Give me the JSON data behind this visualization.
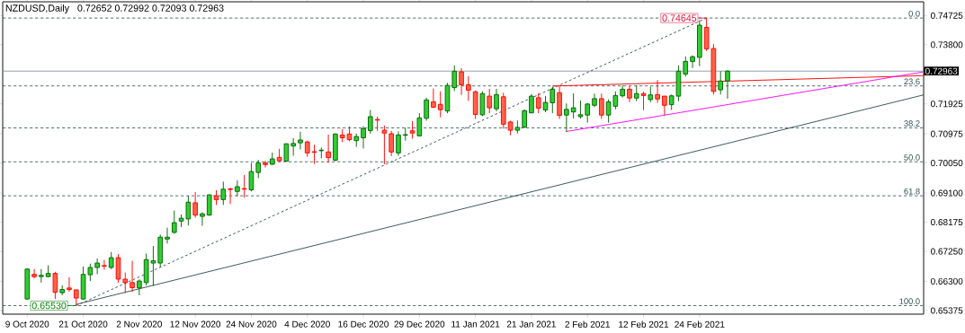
{
  "chart_data": {
    "type": "candlestick",
    "title": "NZDUSD,Daily",
    "subtitle": "0.72652 0.72992 0.72093 0.72963",
    "categories": [
      "9 Oct 2020",
      null,
      null,
      null,
      null,
      null,
      null,
      null,
      "21 Oct 2020",
      null,
      null,
      null,
      null,
      null,
      null,
      null,
      "2 Nov 2020",
      null,
      null,
      null,
      null,
      null,
      null,
      null,
      "12 Nov 2020",
      null,
      null,
      null,
      null,
      null,
      null,
      null,
      "24 Nov 2020",
      null,
      null,
      null,
      null,
      null,
      null,
      null,
      "4 Dec 2020",
      null,
      null,
      null,
      null,
      null,
      null,
      null,
      "16 Dec 2020",
      null,
      null,
      null,
      null,
      null,
      null,
      null,
      "29 Dec 2020",
      null,
      null,
      null,
      null,
      null,
      null,
      null,
      "11 Jan 2021",
      null,
      null,
      null,
      null,
      null,
      null,
      null,
      "21 Jan 2021",
      null,
      null,
      null,
      null,
      null,
      null,
      null,
      "2 Feb 2021",
      null,
      null,
      null,
      null,
      null,
      null,
      null,
      "12 Feb 2021",
      null,
      null,
      null,
      null,
      null,
      null,
      null,
      "24 Feb 2021",
      null,
      null,
      null,
      null,
      null,
      null,
      null,
      null,
      null,
      null,
      null,
      null,
      null,
      null,
      null,
      null,
      null,
      null,
      null,
      null,
      null,
      null,
      null,
      null,
      null,
      null,
      null,
      null,
      null,
      null,
      null,
      null
    ],
    "ohlc": [
      [
        0.6574,
        0.6671,
        0.6572,
        0.6669
      ],
      [
        0.6652,
        0.6669,
        0.6639,
        0.6645
      ],
      [
        0.6645,
        0.6669,
        0.6626,
        0.6649
      ],
      [
        0.6645,
        0.6681,
        0.6643,
        0.6655
      ],
      [
        0.6655,
        0.666,
        0.6574,
        0.6595
      ],
      [
        0.6594,
        0.6617,
        0.6586,
        0.6604
      ],
      [
        0.6609,
        0.6643,
        0.6597,
        0.6604
      ],
      [
        0.6603,
        0.6603,
        0.6553,
        0.6577
      ],
      [
        0.6574,
        0.6677,
        0.6572,
        0.6652
      ],
      [
        0.6651,
        0.6686,
        0.6631,
        0.6674
      ],
      [
        0.6674,
        0.6703,
        0.6653,
        0.6688
      ],
      [
        0.668,
        0.6698,
        0.6667,
        0.6678
      ],
      [
        0.6674,
        0.6723,
        0.6669,
        0.6705
      ],
      [
        0.6705,
        0.6716,
        0.6626,
        0.6637
      ],
      [
        0.6637,
        0.6658,
        0.6593,
        0.6626
      ],
      [
        0.6626,
        0.6695,
        0.6597,
        0.661
      ],
      [
        0.6609,
        0.6636,
        0.6586,
        0.6631
      ],
      [
        0.6626,
        0.6718,
        0.6617,
        0.6699
      ],
      [
        0.6688,
        0.6742,
        0.6615,
        0.6695
      ],
      [
        0.6688,
        0.6778,
        0.6675,
        0.677
      ],
      [
        0.6764,
        0.68,
        0.675,
        0.677
      ],
      [
        0.6785,
        0.6854,
        0.6781,
        0.6816
      ],
      [
        0.6821,
        0.6842,
        0.6802,
        0.683
      ],
      [
        0.6828,
        0.6901,
        0.6807,
        0.6881
      ],
      [
        0.6879,
        0.6913,
        0.6832,
        0.684
      ],
      [
        0.6836,
        0.6849,
        0.6806,
        0.6844
      ],
      [
        0.684,
        0.6906,
        0.6838,
        0.6904
      ],
      [
        0.6901,
        0.6919,
        0.6872,
        0.6889
      ],
      [
        0.6889,
        0.6946,
        0.6872,
        0.6922
      ],
      [
        0.6923,
        0.6927,
        0.6875,
        0.6921
      ],
      [
        0.6915,
        0.695,
        0.69,
        0.693
      ],
      [
        0.6924,
        0.6967,
        0.6895,
        0.6922
      ],
      [
        0.692,
        0.7005,
        0.6915,
        0.6978
      ],
      [
        0.6975,
        0.7015,
        0.6957,
        0.7005
      ],
      [
        0.7005,
        0.7012,
        0.6991,
        0.7
      ],
      [
        0.7001,
        0.7038,
        0.6999,
        0.7018
      ],
      [
        0.7023,
        0.705,
        0.701,
        0.7012
      ],
      [
        0.7011,
        0.7067,
        0.701,
        0.7066
      ],
      [
        0.7059,
        0.7084,
        0.7028,
        0.7067
      ],
      [
        0.7069,
        0.7104,
        0.7048,
        0.7078
      ],
      [
        0.7072,
        0.7076,
        0.7025,
        0.7037
      ],
      [
        0.7041,
        0.7063,
        0.7002,
        0.7039
      ],
      [
        0.7044,
        0.7054,
        0.702,
        0.7046
      ],
      [
        0.704,
        0.7095,
        0.7006,
        0.7022
      ],
      [
        0.7014,
        0.7099,
        0.7011,
        0.7097
      ],
      [
        0.7094,
        0.7112,
        0.7071,
        0.7085
      ],
      [
        0.7097,
        0.7121,
        0.7074,
        0.7079
      ],
      [
        0.7076,
        0.7098,
        0.7056,
        0.7089
      ],
      [
        0.7085,
        0.7122,
        0.7051,
        0.7114
      ],
      [
        0.7108,
        0.7173,
        0.7098,
        0.7152
      ],
      [
        0.7143,
        0.7152,
        0.7107,
        0.7141
      ],
      [
        0.7109,
        0.7124,
        0.7001,
        0.71
      ],
      [
        0.7098,
        0.7107,
        0.7027,
        0.704
      ],
      [
        0.7037,
        0.7105,
        0.7028,
        0.7094
      ],
      [
        0.7093,
        0.7117,
        0.7076,
        0.7095
      ],
      [
        0.7107,
        0.7138,
        0.7082,
        0.71
      ],
      [
        0.7091,
        0.7163,
        0.709,
        0.7148
      ],
      [
        0.7147,
        0.7212,
        0.7139,
        0.7205
      ],
      [
        0.7199,
        0.7241,
        0.7179,
        0.7182
      ],
      [
        0.7191,
        0.7232,
        0.715,
        0.7174
      ],
      [
        0.717,
        0.7259,
        0.7163,
        0.7251
      ],
      [
        0.7244,
        0.7314,
        0.7233,
        0.7296
      ],
      [
        0.7294,
        0.7306,
        0.7221,
        0.7253
      ],
      [
        0.7253,
        0.728,
        0.7202,
        0.7236
      ],
      [
        0.7231,
        0.7235,
        0.7145,
        0.7159
      ],
      [
        0.7158,
        0.7232,
        0.7154,
        0.7225
      ],
      [
        0.7217,
        0.724,
        0.7163,
        0.718
      ],
      [
        0.7177,
        0.724,
        0.7169,
        0.7222
      ],
      [
        0.7215,
        0.7228,
        0.7114,
        0.7128
      ],
      [
        0.7135,
        0.7139,
        0.7093,
        0.7109
      ],
      [
        0.7109,
        0.714,
        0.7099,
        0.7118
      ],
      [
        0.7119,
        0.7175,
        0.7116,
        0.7171
      ],
      [
        0.7164,
        0.7224,
        0.7163,
        0.7217
      ],
      [
        0.7212,
        0.7227,
        0.7163,
        0.7179
      ],
      [
        0.7173,
        0.7217,
        0.7166,
        0.7197
      ],
      [
        0.7196,
        0.7247,
        0.7163,
        0.7239
      ],
      [
        0.7228,
        0.7247,
        0.7145,
        0.7156
      ],
      [
        0.7157,
        0.7194,
        0.7103,
        0.7175
      ],
      [
        0.7167,
        0.7226,
        0.7146,
        0.718
      ],
      [
        0.7152,
        0.7203,
        0.7146,
        0.7158
      ],
      [
        0.7157,
        0.7195,
        0.7133,
        0.7192
      ],
      [
        0.7188,
        0.7225,
        0.7182,
        0.7209
      ],
      [
        0.7209,
        0.7225,
        0.7145,
        0.7157
      ],
      [
        0.7157,
        0.7207,
        0.7133,
        0.7199
      ],
      [
        0.7185,
        0.7232,
        0.7175,
        0.7219
      ],
      [
        0.7218,
        0.7251,
        0.7213,
        0.7239
      ],
      [
        0.7239,
        0.7249,
        0.7198,
        0.7211
      ],
      [
        0.7211,
        0.7251,
        0.7201,
        0.7225
      ],
      [
        0.7225,
        0.7231,
        0.7173,
        0.7219
      ],
      [
        0.7206,
        0.7247,
        0.7198,
        0.7221
      ],
      [
        0.7222,
        0.7268,
        0.7196,
        0.7208
      ],
      [
        0.7217,
        0.7218,
        0.7156,
        0.7188
      ],
      [
        0.719,
        0.7222,
        0.7173,
        0.7218
      ],
      [
        0.7217,
        0.7314,
        0.7201,
        0.7296
      ],
      [
        0.7287,
        0.7343,
        0.7279,
        0.7327
      ],
      [
        0.7327,
        0.7346,
        0.7306,
        0.7342
      ],
      [
        0.734,
        0.7457,
        0.7312,
        0.7442
      ],
      [
        0.7435,
        0.74645,
        0.736,
        0.7367
      ],
      [
        0.7368,
        0.7382,
        0.7222,
        0.7232
      ],
      [
        0.7237,
        0.7296,
        0.7222,
        0.7265
      ],
      [
        0.72652,
        0.72992,
        0.72093,
        0.72963
      ],
      null,
      null,
      null,
      null,
      null,
      null,
      null,
      null,
      null,
      null,
      null,
      null,
      null,
      null,
      null,
      null,
      null,
      null,
      null,
      null,
      null,
      null,
      null,
      null,
      null,
      null,
      null,
      null
    ],
    "series": [
      {
        "type": "line",
        "color": "#2f4f4f",
        "line_style": "solid",
        "values": [
          null,
          null,
          null,
          null,
          null,
          null,
          null,
          0.6557,
          null,
          null,
          null,
          null,
          null,
          null,
          null,
          null,
          null,
          null,
          null,
          null,
          null,
          null,
          null,
          null,
          null,
          null,
          null,
          null,
          null,
          null,
          null,
          null,
          null,
          null,
          null,
          null,
          null,
          null,
          null,
          null,
          null,
          null,
          null,
          null,
          null,
          null,
          null,
          null,
          null,
          null,
          null,
          null,
          null,
          null,
          null,
          null,
          null,
          null,
          null,
          null,
          null,
          null,
          null,
          null,
          null,
          null,
          null,
          null,
          null,
          null,
          null,
          null,
          null,
          null,
          null,
          null,
          null,
          null,
          null,
          null,
          null,
          null,
          null,
          null,
          null,
          null,
          null,
          null,
          null,
          null,
          null,
          null,
          null,
          null,
          null,
          null,
          null,
          null,
          null,
          null,
          null,
          null,
          null,
          null,
          null,
          null,
          null,
          null,
          null,
          null,
          null,
          null,
          null,
          null,
          null,
          null,
          null,
          null,
          null,
          null,
          null,
          null,
          null,
          null,
          null,
          null,
          null,
          null,
          0.7221
        ]
      },
      {
        "type": "line",
        "color": "#2f4f4f",
        "line_style": "dashed",
        "values": [
          null,
          null,
          null,
          null,
          null,
          null,
          null,
          0.6553,
          null,
          null,
          null,
          null,
          null,
          null,
          null,
          null,
          null,
          null,
          null,
          null,
          null,
          null,
          null,
          null,
          null,
          null,
          null,
          null,
          null,
          null,
          null,
          null,
          null,
          null,
          null,
          null,
          null,
          null,
          null,
          null,
          null,
          null,
          null,
          null,
          null,
          null,
          null,
          null,
          null,
          null,
          null,
          null,
          null,
          null,
          null,
          null,
          null,
          null,
          null,
          null,
          null,
          null,
          null,
          null,
          null,
          null,
          null,
          null,
          null,
          null,
          null,
          null,
          null,
          null,
          null,
          null,
          null,
          null,
          null,
          null,
          null,
          null,
          null,
          null,
          null,
          null,
          null,
          null,
          null,
          null,
          null,
          null,
          null,
          null,
          null,
          null,
          null,
          0.74645,
          null,
          null,
          null,
          null,
          null,
          null,
          null,
          null,
          null,
          null,
          null,
          null,
          null,
          null,
          null,
          null,
          null,
          null,
          null,
          null,
          null,
          null,
          null,
          null,
          null,
          null,
          null,
          null,
          null,
          null,
          null
        ]
      },
      {
        "type": "line",
        "color": "#ff0000",
        "line_style": "solid",
        "values": [
          null,
          null,
          null,
          null,
          null,
          null,
          null,
          null,
          null,
          null,
          null,
          null,
          null,
          null,
          null,
          null,
          null,
          null,
          null,
          null,
          null,
          null,
          null,
          null,
          null,
          null,
          null,
          null,
          null,
          null,
          null,
          null,
          null,
          null,
          null,
          null,
          null,
          null,
          null,
          null,
          null,
          null,
          null,
          null,
          null,
          null,
          null,
          null,
          null,
          null,
          null,
          null,
          null,
          null,
          null,
          null,
          null,
          null,
          null,
          null,
          null,
          null,
          null,
          null,
          null,
          null,
          null,
          null,
          null,
          null,
          null,
          null,
          null,
          null,
          null,
          0.7249,
          null,
          null,
          null,
          null,
          null,
          null,
          null,
          null,
          null,
          null,
          null,
          null,
          null,
          null,
          null,
          null,
          null,
          null,
          null,
          null,
          null,
          null,
          null,
          null,
          null,
          null,
          null,
          null,
          null,
          null,
          null,
          null,
          null,
          null,
          null,
          null,
          null,
          null,
          null,
          null,
          null,
          null,
          null,
          null,
          null,
          null,
          null,
          null,
          null,
          null,
          null,
          null,
          0.7282
        ]
      },
      {
        "type": "line",
        "color": "#ff00ff",
        "line_style": "solid",
        "values": [
          null,
          null,
          null,
          null,
          null,
          null,
          null,
          null,
          null,
          null,
          null,
          null,
          null,
          null,
          null,
          null,
          null,
          null,
          null,
          null,
          null,
          null,
          null,
          null,
          null,
          null,
          null,
          null,
          null,
          null,
          null,
          null,
          null,
          null,
          null,
          null,
          null,
          null,
          null,
          null,
          null,
          null,
          null,
          null,
          null,
          null,
          null,
          null,
          null,
          null,
          null,
          null,
          null,
          null,
          null,
          null,
          null,
          null,
          null,
          null,
          null,
          null,
          null,
          null,
          null,
          null,
          null,
          null,
          null,
          null,
          null,
          null,
          null,
          null,
          null,
          null,
          null,
          0.7105,
          null,
          null,
          null,
          null,
          null,
          null,
          null,
          null,
          null,
          null,
          null,
          null,
          null,
          null,
          null,
          null,
          null,
          null,
          null,
          null,
          null,
          null,
          null,
          null,
          null,
          null,
          null,
          null,
          null,
          null,
          null,
          null,
          null,
          null,
          null,
          null,
          null,
          null,
          null,
          null,
          null,
          null,
          null,
          null,
          null,
          null,
          null,
          null,
          null,
          null,
          0.7294
        ]
      }
    ],
    "ylim": [
      0.6526,
      0.7516
    ],
    "yticks": [
      {
        "value": 0.74725,
        "label": "0.74725"
      },
      {
        "value": 0.738,
        "label": "0.73800"
      },
      {
        "value": 0.71925,
        "label": "0.71925"
      },
      {
        "value": 0.70975,
        "label": "0.70975"
      },
      {
        "value": 0.7005,
        "label": "0.70050"
      },
      {
        "value": 0.691,
        "label": "0.69100"
      },
      {
        "value": 0.68175,
        "label": "0.68175"
      },
      {
        "value": 0.6725,
        "label": "0.67250"
      },
      {
        "value": 0.663,
        "label": "0.66300"
      },
      {
        "value": 0.65375,
        "label": "0.65375"
      }
    ],
    "ref_lines": [
      {
        "axis": "y",
        "value": 0.74645,
        "color": "#2f4f4f",
        "line_style": "dashed"
      },
      {
        "axis": "y",
        "value": 0.72494,
        "color": "#2f4f4f",
        "line_style": "dashed"
      },
      {
        "axis": "y",
        "value": 0.71163,
        "color": "#2f4f4f",
        "line_style": "dashed"
      },
      {
        "axis": "y",
        "value": 0.70088,
        "color": "#2f4f4f",
        "line_style": "dashed"
      },
      {
        "axis": "y",
        "value": 0.69012,
        "color": "#2f4f4f",
        "line_style": "dashed"
      },
      {
        "axis": "y",
        "value": 0.6553,
        "color": "#2f4f4f",
        "line_style": "dashed"
      },
      {
        "axis": "y",
        "value": 0.72963,
        "label": "0.72963",
        "color": "#778899",
        "line_style": "solid"
      }
    ],
    "annotations": [
      {
        "text": "0.74645",
        "y": 0.74645
      },
      {
        "text": "0.65530",
        "y": 0.6553
      },
      {
        "text": "0.0",
        "y": 0.74645
      },
      {
        "text": "23.6",
        "y": 0.72494
      },
      {
        "text": "38.2",
        "y": 0.71163
      },
      {
        "text": "50.0",
        "y": 0.70088
      },
      {
        "text": "61.8",
        "y": 0.69012
      },
      {
        "text": "100.0",
        "y": 0.6553
      }
    ]
  }
}
